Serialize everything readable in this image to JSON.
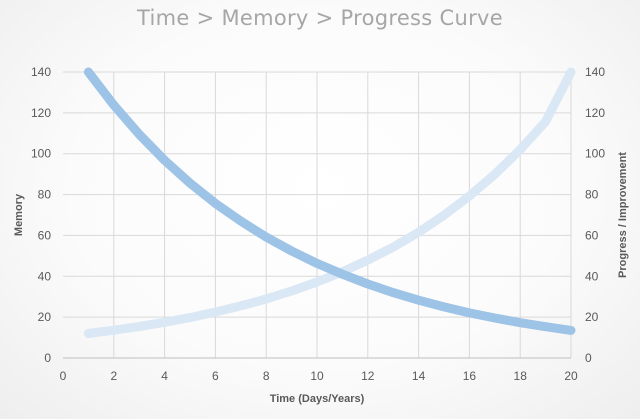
{
  "chart_data": {
    "type": "line",
    "title": "Time > Memory > Progress Curve",
    "xlabel": "Time (Days/Years)",
    "ylabel": "Memory",
    "y2label": "Progress / Improvement",
    "xlim": [
      0,
      20
    ],
    "ylim": [
      0,
      140
    ],
    "y2lim": [
      0,
      140
    ],
    "x_ticks": [
      "0",
      "2",
      "4",
      "6",
      "8",
      "10",
      "12",
      "14",
      "16",
      "18",
      "20"
    ],
    "y_ticks": [
      "0",
      "20",
      "40",
      "60",
      "80",
      "100",
      "120",
      "140"
    ],
    "y2_ticks": [
      "0",
      "20",
      "40",
      "60",
      "80",
      "100",
      "120",
      "140"
    ],
    "grid": true,
    "x": [
      1,
      2,
      3,
      4,
      5,
      6,
      7,
      8,
      9,
      10,
      11,
      12,
      13,
      14,
      15,
      16,
      17,
      18,
      19,
      20
    ],
    "series": [
      {
        "axis": "left",
        "color": "#9dc3e6",
        "values": [
          140,
          123.8,
          109.5,
          96.8,
          85.6,
          75.7,
          67,
          59.2,
          52.4,
          46.3,
          41,
          36.2,
          32,
          28.3,
          25,
          22.1,
          19.6,
          17.3,
          15.3,
          13.5
        ]
      },
      {
        "axis": "right",
        "color": "#dae7f4",
        "values": [
          12,
          13.6,
          15.4,
          17.5,
          19.8,
          22.5,
          25.5,
          28.9,
          32.8,
          37.2,
          42.2,
          47.9,
          54.3,
          61.6,
          69.9,
          79.3,
          89.9,
          102,
          115.7,
          140
        ]
      }
    ]
  }
}
